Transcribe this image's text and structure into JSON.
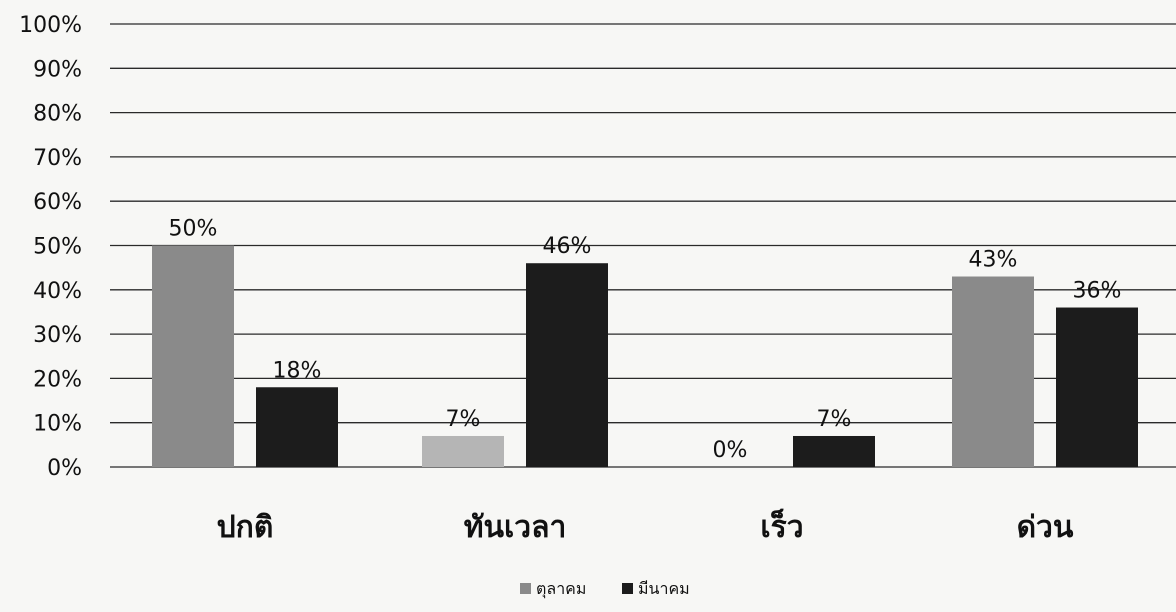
{
  "chart_data": {
    "type": "bar",
    "categories": [
      "ปกติ",
      "ทันเวลา",
      "เร็ว",
      "ด่วน"
    ],
    "series": [
      {
        "name": "ตุลาคม",
        "values": [
          50,
          7,
          0,
          43
        ],
        "labels": [
          "50%",
          "7%",
          "0%",
          "43%"
        ],
        "color": "#8a8a8a"
      },
      {
        "name": "มีนาคม",
        "values": [
          18,
          46,
          7,
          36
        ],
        "labels": [
          "18%",
          "46%",
          "7%",
          "36%"
        ],
        "color": "#1c1c1c"
      }
    ],
    "ylim": [
      0,
      100
    ],
    "yticks": [
      "0%",
      "10%",
      "20%",
      "30%",
      "40%",
      "50%",
      "60%",
      "70%",
      "80%",
      "90%",
      "100%"
    ],
    "grid": true,
    "legend_position": "bottom-center",
    "title": "",
    "xlabel": "",
    "ylabel": ""
  }
}
